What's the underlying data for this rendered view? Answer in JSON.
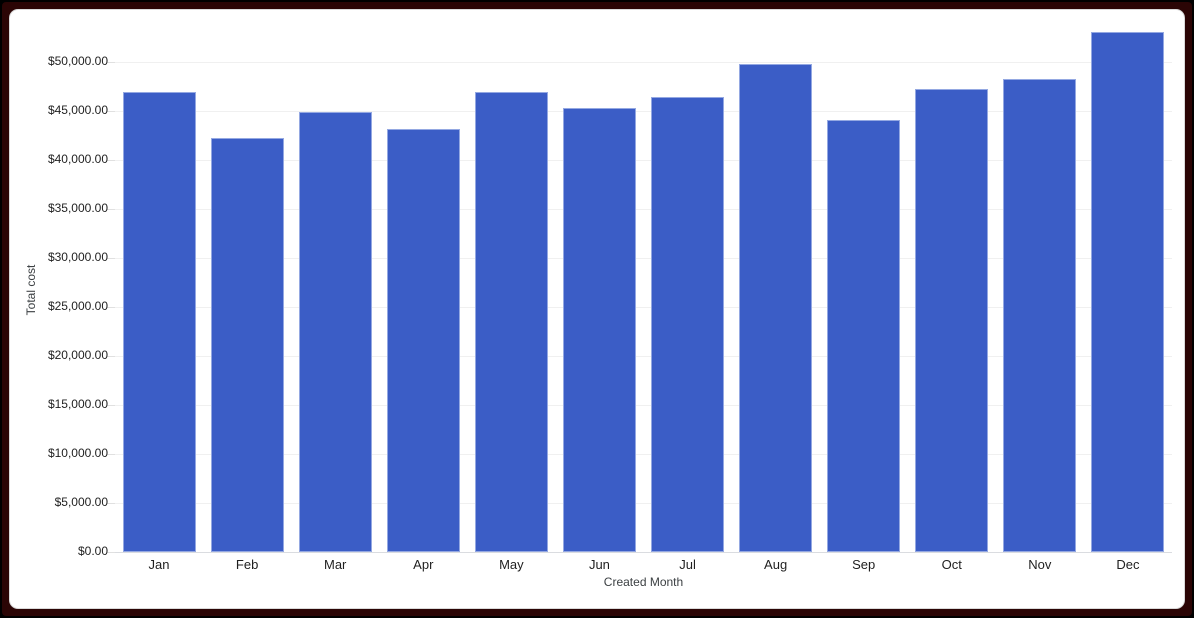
{
  "frame": {
    "outer_color": "#000000",
    "border_color": "#2b0505",
    "card_background": "#ffffff"
  },
  "chart_data": {
    "type": "bar",
    "title": "",
    "xlabel": "Created Month",
    "ylabel": "Total cost",
    "categories": [
      "Jan",
      "Feb",
      "Mar",
      "Apr",
      "May",
      "Jun",
      "Jul",
      "Aug",
      "Sep",
      "Oct",
      "Nov",
      "Dec"
    ],
    "series": [
      {
        "name": "Total cost",
        "values": [
          46900,
          42200,
          44900,
          43200,
          46900,
          45300,
          46400,
          49800,
          44100,
          47200,
          48300,
          53100
        ]
      }
    ],
    "y_ticks": [
      "$0.00",
      "$5,000.00",
      "$10,000.00",
      "$15,000.00",
      "$20,000.00",
      "$25,000.00",
      "$30,000.00",
      "$35,000.00",
      "$40,000.00",
      "$45,000.00",
      "$50,000.00"
    ],
    "y_tick_interval": 5000,
    "ylim": [
      0,
      55000
    ],
    "grid": true,
    "legend": "none",
    "bar_color": "#3b5dc6",
    "bar_border_color": "#94a8e2",
    "gridline_color": "#f0f0f0",
    "baseline_color": "#dadce0"
  }
}
